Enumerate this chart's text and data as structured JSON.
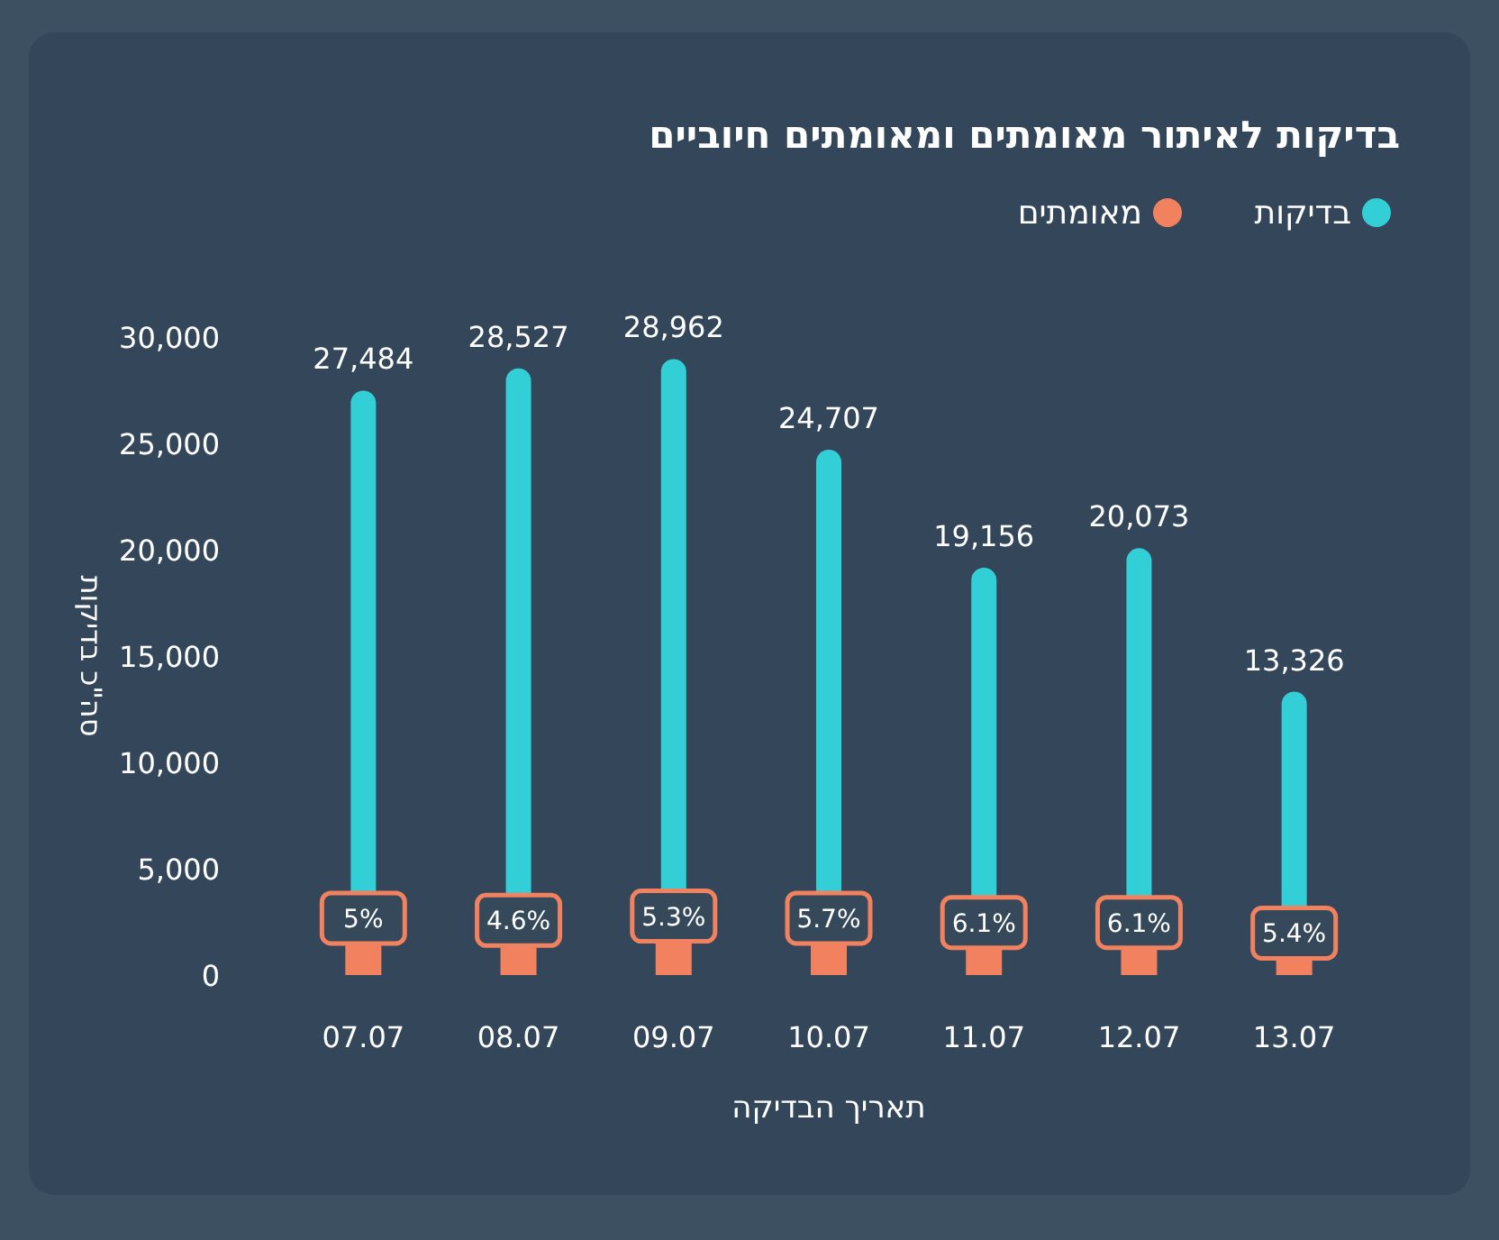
{
  "chart_data": {
    "type": "bar",
    "title": "בדיקות לאיתור מאומתים ומאומתים חיוביים",
    "xlabel": "תאריך הבדיקה",
    "ylabel": "סה\"כ בדיקות",
    "categories": [
      "07.07",
      "08.07",
      "09.07",
      "10.07",
      "11.07",
      "12.07",
      "13.07"
    ],
    "series": [
      {
        "name": "בדיקות",
        "color": "#33cfd6",
        "values": [
          27484,
          28527,
          28962,
          24707,
          19156,
          20073,
          13326
        ],
        "value_labels": [
          "27,484",
          "28,527",
          "28,962",
          "24,707",
          "19,156",
          "20,073",
          "13,326"
        ]
      },
      {
        "name": "מאומתים",
        "color": "#f2825f",
        "values": [
          1400,
          1300,
          1500,
          1400,
          1200,
          1200,
          700
        ]
      }
    ],
    "annotations": [
      {
        "text": "5%",
        "x": "07.07",
        "y": 1400
      },
      {
        "text": "4.6%",
        "x": "08.07",
        "y": 1300
      },
      {
        "text": "5.3%",
        "x": "09.07",
        "y": 1500
      },
      {
        "text": "5.7%",
        "x": "10.07",
        "y": 1400
      },
      {
        "text": "6.1%",
        "x": "11.07",
        "y": 1200
      },
      {
        "text": "6.1%",
        "x": "12.07",
        "y": 1200
      },
      {
        "text": "5.4%",
        "x": "13.07",
        "y": 700
      }
    ],
    "ylim": [
      0,
      30000
    ],
    "yticks": [
      0,
      {
        "value": 5000,
        "label": "5,000"
      },
      {
        "value": 10000,
        "label": "10,000"
      },
      {
        "value": 15000,
        "label": "15,000"
      },
      {
        "value": 20000,
        "label": "20,000"
      },
      {
        "value": 25000,
        "label": "25,000"
      },
      {
        "value": 30000,
        "label": "30,000"
      }
    ],
    "legend": "top right",
    "grid": false
  }
}
